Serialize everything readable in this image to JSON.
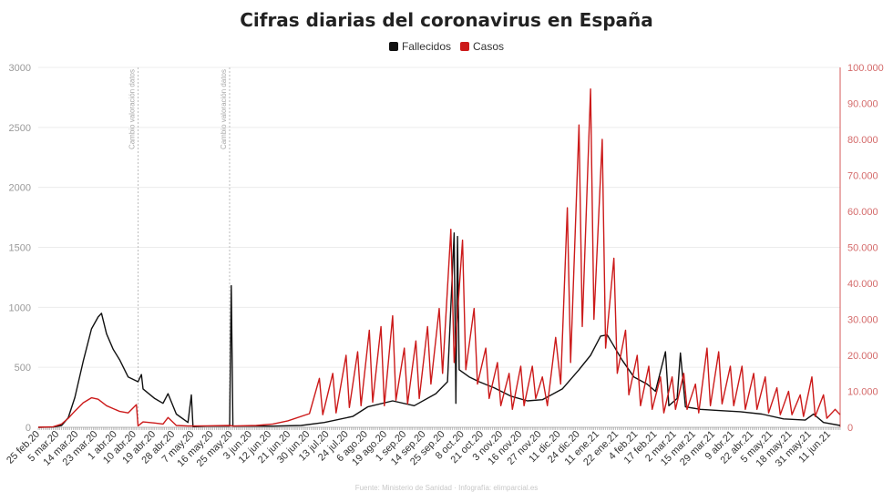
{
  "chart_data": {
    "type": "line",
    "title": "Cifras diarias del coronavirus en España",
    "source": "Fuente: Ministerio de Sanidad · Infografía: elimparcial.es",
    "legend": [
      {
        "label": "Fallecidos",
        "color": "#111111"
      },
      {
        "label": "Casos",
        "color": "#cc1a1a"
      }
    ],
    "y_left": {
      "ticks": [
        "0",
        "500",
        "1000",
        "1500",
        "2000",
        "2500",
        "3000"
      ],
      "lim": [
        0,
        3000
      ]
    },
    "y_right": {
      "ticks": [
        "0",
        "10.000",
        "20.000",
        "30.000",
        "40.000",
        "50.000",
        "60.000",
        "70.000",
        "80.000",
        "90.000",
        "100.000"
      ],
      "lim": [
        0,
        100000
      ]
    },
    "x_range": [
      "2020-02-25",
      "2021-06-21"
    ],
    "x_ticks": [
      "25 feb.20",
      "5 mar.20",
      "14 mar.20",
      "23 mar.20",
      "1 abr.20",
      "10 abr.20",
      "19 abr.20",
      "28 abr.20",
      "7 may.20",
      "16 may.20",
      "25 may.20",
      "3 jun.20",
      "12 jun.20",
      "21 jun.20",
      "30 jun.20",
      "13 jul.20",
      "24 jul.20",
      "6 ago.20",
      "19 ago.20",
      "1 sep.20",
      "14 sep.20",
      "25 sep.20",
      "8 oct.20",
      "21 oct.20",
      "3 nov.20",
      "16 nov.20",
      "27 nov.20",
      "11 dic.20",
      "24 dic.20",
      "11 ene.21",
      "22 ene.21",
      "4 feb.21",
      "17 feb.21",
      "2 mar.21",
      "15 mar.21",
      "29 mar.21",
      "9 abr.21",
      "22 abr.21",
      "5 may.21",
      "18 may.21",
      "31 may.21",
      "11 jun.21"
    ],
    "annotations": [
      {
        "x": "2020-04-25",
        "text": "Cambio valoración datos"
      },
      {
        "x": "2020-06-19",
        "text": "Cambio valoración datos"
      }
    ],
    "series": [
      {
        "name": "Fallecidos",
        "axis": "left",
        "color": "#111111",
        "points": [
          [
            "2020-02-25",
            0
          ],
          [
            "2020-03-05",
            2
          ],
          [
            "2020-03-10",
            15
          ],
          [
            "2020-03-14",
            80
          ],
          [
            "2020-03-18",
            250
          ],
          [
            "2020-03-23",
            550
          ],
          [
            "2020-03-28",
            820
          ],
          [
            "2020-04-01",
            920
          ],
          [
            "2020-04-03",
            950
          ],
          [
            "2020-04-06",
            780
          ],
          [
            "2020-04-10",
            650
          ],
          [
            "2020-04-14",
            560
          ],
          [
            "2020-04-19",
            420
          ],
          [
            "2020-04-25",
            380
          ],
          [
            "2020-04-27",
            440
          ],
          [
            "2020-04-28",
            320
          ],
          [
            "2020-05-05",
            240
          ],
          [
            "2020-05-10",
            200
          ],
          [
            "2020-05-13",
            280
          ],
          [
            "2020-05-18",
            110
          ],
          [
            "2020-05-25",
            40
          ],
          [
            "2020-05-27",
            270
          ],
          [
            "2020-05-28",
            5
          ],
          [
            "2020-06-05",
            10
          ],
          [
            "2020-06-19",
            10
          ],
          [
            "2020-06-20",
            1180
          ],
          [
            "2020-06-21",
            10
          ],
          [
            "2020-07-15",
            10
          ],
          [
            "2020-08-01",
            15
          ],
          [
            "2020-08-15",
            40
          ],
          [
            "2020-09-01",
            90
          ],
          [
            "2020-09-10",
            170
          ],
          [
            "2020-09-25",
            220
          ],
          [
            "2020-10-08",
            180
          ],
          [
            "2020-10-21",
            280
          ],
          [
            "2020-10-28",
            380
          ],
          [
            "2020-11-01",
            1620
          ],
          [
            "2020-11-02",
            200
          ],
          [
            "2020-11-03",
            1590
          ],
          [
            "2020-11-04",
            480
          ],
          [
            "2020-11-10",
            420
          ],
          [
            "2020-11-16",
            380
          ],
          [
            "2020-11-25",
            330
          ],
          [
            "2020-12-05",
            260
          ],
          [
            "2020-12-15",
            220
          ],
          [
            "2020-12-24",
            230
          ],
          [
            "2021-01-05",
            320
          ],
          [
            "2021-01-15",
            480
          ],
          [
            "2021-01-22",
            600
          ],
          [
            "2021-01-28",
            760
          ],
          [
            "2021-02-01",
            770
          ],
          [
            "2021-02-04",
            700
          ],
          [
            "2021-02-10",
            560
          ],
          [
            "2021-02-17",
            420
          ],
          [
            "2021-02-25",
            360
          ],
          [
            "2021-03-02",
            300
          ],
          [
            "2021-03-08",
            630
          ],
          [
            "2021-03-10",
            180
          ],
          [
            "2021-03-15",
            240
          ],
          [
            "2021-03-17",
            620
          ],
          [
            "2021-03-20",
            170
          ],
          [
            "2021-03-29",
            150
          ],
          [
            "2021-04-09",
            140
          ],
          [
            "2021-04-22",
            130
          ],
          [
            "2021-05-05",
            110
          ],
          [
            "2021-05-18",
            70
          ],
          [
            "2021-05-31",
            60
          ],
          [
            "2021-06-05",
            110
          ],
          [
            "2021-06-11",
            40
          ],
          [
            "2021-06-21",
            15
          ]
        ]
      },
      {
        "name": "Casos",
        "axis": "right",
        "color": "#cc1a1a",
        "points": [
          [
            "2020-02-25",
            0
          ],
          [
            "2020-03-05",
            150
          ],
          [
            "2020-03-10",
            900
          ],
          [
            "2020-03-14",
            2500
          ],
          [
            "2020-03-18",
            4500
          ],
          [
            "2020-03-23",
            6800
          ],
          [
            "2020-03-28",
            8200
          ],
          [
            "2020-04-01",
            7800
          ],
          [
            "2020-04-06",
            6000
          ],
          [
            "2020-04-10",
            5200
          ],
          [
            "2020-04-14",
            4400
          ],
          [
            "2020-04-19",
            4000
          ],
          [
            "2020-04-24",
            6300
          ],
          [
            "2020-04-25",
            400
          ],
          [
            "2020-04-28",
            1500
          ],
          [
            "2020-05-05",
            1200
          ],
          [
            "2020-05-10",
            900
          ],
          [
            "2020-05-13",
            2700
          ],
          [
            "2020-05-18",
            500
          ],
          [
            "2020-05-25",
            350
          ],
          [
            "2020-06-05",
            400
          ],
          [
            "2020-06-19",
            500
          ],
          [
            "2020-06-21",
            350
          ],
          [
            "2020-07-05",
            500
          ],
          [
            "2020-07-15",
            900
          ],
          [
            "2020-07-24",
            1800
          ],
          [
            "2020-08-06",
            3800
          ],
          [
            "2020-08-12",
            13600
          ],
          [
            "2020-08-14",
            3500
          ],
          [
            "2020-08-20",
            15000
          ],
          [
            "2020-08-22",
            4000
          ],
          [
            "2020-08-28",
            20000
          ],
          [
            "2020-08-30",
            5500
          ],
          [
            "2020-09-04",
            21000
          ],
          [
            "2020-09-06",
            6000
          ],
          [
            "2020-09-11",
            27000
          ],
          [
            "2020-09-13",
            7000
          ],
          [
            "2020-09-18",
            28000
          ],
          [
            "2020-09-20",
            6000
          ],
          [
            "2020-09-25",
            31000
          ],
          [
            "2020-09-27",
            7500
          ],
          [
            "2020-10-02",
            22000
          ],
          [
            "2020-10-04",
            6500
          ],
          [
            "2020-10-09",
            24000
          ],
          [
            "2020-10-11",
            8000
          ],
          [
            "2020-10-16",
            28000
          ],
          [
            "2020-10-18",
            12000
          ],
          [
            "2020-10-23",
            33000
          ],
          [
            "2020-10-25",
            15000
          ],
          [
            "2020-10-30",
            55000
          ],
          [
            "2020-11-01",
            18000
          ],
          [
            "2020-11-06",
            52000
          ],
          [
            "2020-11-08",
            16000
          ],
          [
            "2020-11-13",
            33000
          ],
          [
            "2020-11-15",
            12000
          ],
          [
            "2020-11-20",
            22000
          ],
          [
            "2020-11-22",
            8000
          ],
          [
            "2020-11-27",
            18000
          ],
          [
            "2020-11-29",
            6000
          ],
          [
            "2020-12-04",
            15000
          ],
          [
            "2020-12-06",
            5000
          ],
          [
            "2020-12-11",
            17000
          ],
          [
            "2020-12-13",
            6000
          ],
          [
            "2020-12-18",
            17000
          ],
          [
            "2020-12-20",
            8000
          ],
          [
            "2020-12-24",
            14000
          ],
          [
            "2020-12-27",
            6000
          ],
          [
            "2021-01-01",
            25000
          ],
          [
            "2021-01-04",
            12000
          ],
          [
            "2021-01-08",
            61000
          ],
          [
            "2021-01-10",
            18000
          ],
          [
            "2021-01-15",
            84000
          ],
          [
            "2021-01-17",
            28000
          ],
          [
            "2021-01-22",
            94000
          ],
          [
            "2021-01-24",
            30000
          ],
          [
            "2021-01-29",
            80000
          ],
          [
            "2021-01-31",
            22000
          ],
          [
            "2021-02-05",
            47000
          ],
          [
            "2021-02-07",
            15000
          ],
          [
            "2021-02-12",
            27000
          ],
          [
            "2021-02-14",
            9000
          ],
          [
            "2021-02-19",
            20000
          ],
          [
            "2021-02-21",
            6000
          ],
          [
            "2021-02-26",
            17000
          ],
          [
            "2021-02-28",
            5000
          ],
          [
            "2021-03-05",
            14000
          ],
          [
            "2021-03-07",
            4000
          ],
          [
            "2021-03-12",
            14000
          ],
          [
            "2021-03-14",
            5000
          ],
          [
            "2021-03-19",
            15000
          ],
          [
            "2021-03-21",
            5000
          ],
          [
            "2021-03-26",
            12000
          ],
          [
            "2021-03-28",
            4000
          ],
          [
            "2021-04-02",
            22000
          ],
          [
            "2021-04-04",
            6000
          ],
          [
            "2021-04-09",
            21000
          ],
          [
            "2021-04-11",
            6500
          ],
          [
            "2021-04-16",
            17000
          ],
          [
            "2021-04-18",
            6000
          ],
          [
            "2021-04-23",
            17000
          ],
          [
            "2021-04-25",
            5000
          ],
          [
            "2021-04-30",
            15000
          ],
          [
            "2021-05-02",
            5000
          ],
          [
            "2021-05-07",
            14000
          ],
          [
            "2021-05-09",
            4000
          ],
          [
            "2021-05-14",
            11000
          ],
          [
            "2021-05-16",
            3500
          ],
          [
            "2021-05-21",
            10000
          ],
          [
            "2021-05-23",
            3500
          ],
          [
            "2021-05-28",
            9000
          ],
          [
            "2021-05-30",
            3000
          ],
          [
            "2021-06-04",
            14000
          ],
          [
            "2021-06-06",
            3000
          ],
          [
            "2021-06-11",
            9000
          ],
          [
            "2021-06-13",
            2500
          ],
          [
            "2021-06-18",
            5000
          ],
          [
            "2021-06-21",
            3500
          ]
        ]
      }
    ]
  }
}
